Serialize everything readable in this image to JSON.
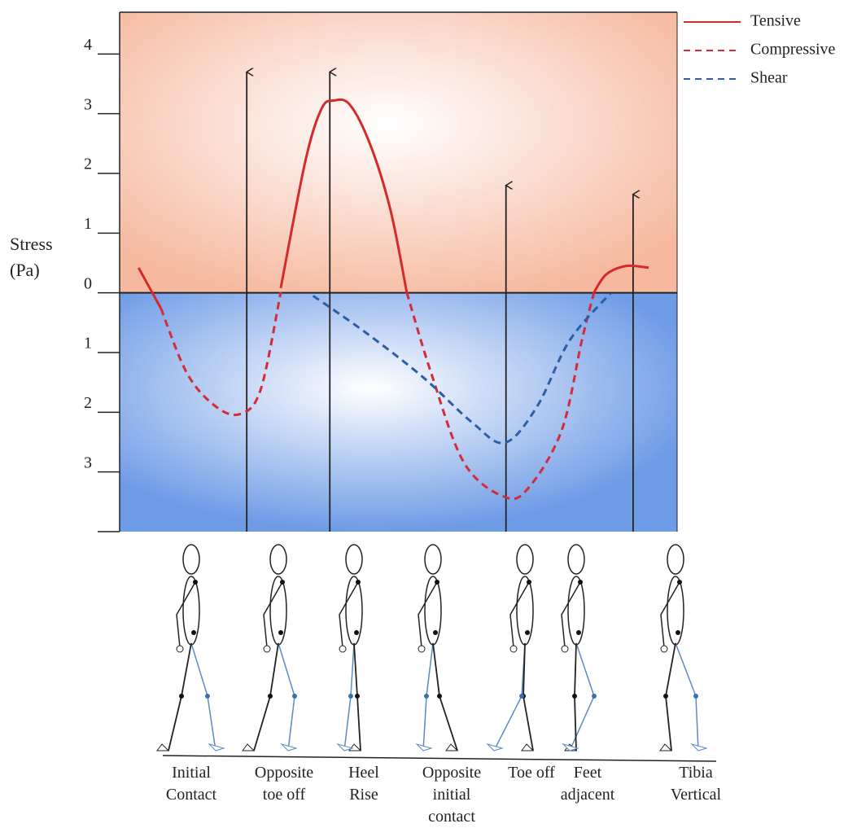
{
  "chart_data": {
    "type": "line",
    "y_label": "Stress (Pa)",
    "xlim": [
      0,
      100
    ],
    "ylim": [
      -4,
      4.7
    ],
    "yticks": [
      {
        "value": -3,
        "label": "3"
      },
      {
        "value": -2,
        "label": "2"
      },
      {
        "value": -1,
        "label": "1"
      },
      0,
      1,
      2,
      3,
      4
    ],
    "series": [
      {
        "name": "Tensive",
        "color": "#d42a2a",
        "dash": false,
        "x": [
          3.4,
          7.4,
          null,
          28.9,
          33.3,
          36.2,
          38.4,
          41.3,
          45,
          48.6,
          51.5,
          null,
          85.1,
          87.3,
          90.9,
          94.9
        ],
        "values": [
          0.42,
          -0.26,
          null,
          0.08,
          2.2,
          3.08,
          3.22,
          3.15,
          2.47,
          1.38,
          0.01,
          null,
          0.01,
          0.31,
          0.45,
          0.42
        ]
      },
      {
        "name": "Compressive",
        "color": "#d42a3a",
        "dash": true,
        "x": [
          7.4,
          12.1,
          17.2,
          21.6,
          25.3,
          28.9,
          null,
          51.5,
          55.9,
          61.8,
          69.1,
          73.4,
          79.3,
          82.9,
          85.1
        ],
        "values": [
          -0.26,
          -1.35,
          -1.9,
          -2.03,
          -1.62,
          0.01,
          null,
          0.01,
          -1.35,
          -2.85,
          -3.42,
          -3.26,
          -2.3,
          -0.8,
          0.01
        ]
      },
      {
        "name": "Shear",
        "color": "#2a5fa8",
        "dash": true,
        "x": [
          34.7,
          44.2,
          54.5,
          63.2,
          69.1,
          74.9,
          80.7,
          88
        ],
        "values": [
          -0.05,
          -0.67,
          -1.42,
          -2.17,
          -2.51,
          -1.9,
          -0.8,
          -0.01
        ]
      }
    ],
    "arrows": {
      "x": [
        22.8,
        37.7,
        69.3,
        92.1
      ],
      "y": [
        3.7,
        3.7,
        1.8,
        1.65
      ]
    },
    "phases": [
      "Initial Contact",
      "Opposite toe off",
      "Heel Rise",
      "Opposite initial contact",
      "Toe off",
      "Feet adjacent",
      "Tibia Vertical"
    ]
  }
}
